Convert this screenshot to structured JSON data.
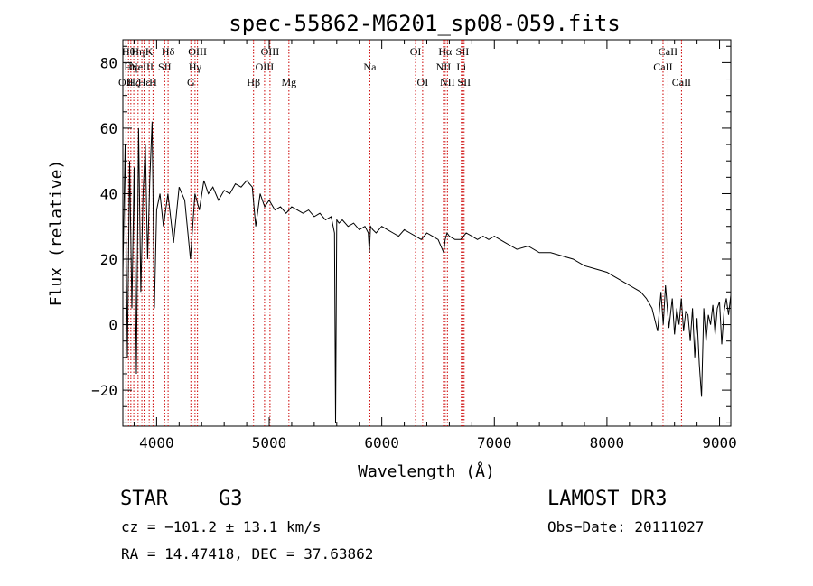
{
  "chart_data": {
    "type": "line",
    "title": "spec-55862-M6201_sp08-059.fits",
    "xlabel": "Wavelength (Å)",
    "ylabel": "Flux (relative)",
    "xlim": [
      3700,
      9100
    ],
    "ylim": [
      -31,
      87
    ],
    "xticks": [
      4000,
      5000,
      6000,
      7000,
      8000,
      9000
    ],
    "yticks": [
      -20,
      0,
      20,
      40,
      60,
      80
    ],
    "xtick_labels": [
      "4000",
      "5000",
      "6000",
      "7000",
      "8000",
      "9000"
    ],
    "ytick_labels": [
      "−20",
      "0",
      "20",
      "40",
      "60",
      "80"
    ],
    "series": [
      {
        "name": "flux",
        "x": [
          3700,
          3720,
          3740,
          3760,
          3780,
          3800,
          3820,
          3840,
          3860,
          3880,
          3900,
          3920,
          3940,
          3960,
          3980,
          4000,
          4030,
          4060,
          4100,
          4150,
          4200,
          4250,
          4300,
          4340,
          4380,
          4420,
          4460,
          4500,
          4550,
          4600,
          4650,
          4700,
          4750,
          4800,
          4850,
          4880,
          4920,
          4960,
          5000,
          5050,
          5100,
          5150,
          5200,
          5250,
          5300,
          5350,
          5400,
          5450,
          5500,
          5550,
          5580,
          5590,
          5600,
          5620,
          5650,
          5700,
          5750,
          5800,
          5850,
          5880,
          5890,
          5900,
          5920,
          5950,
          6000,
          6050,
          6100,
          6150,
          6200,
          6250,
          6300,
          6350,
          6400,
          6450,
          6500,
          6550,
          6563,
          6580,
          6600,
          6650,
          6700,
          6750,
          6800,
          6850,
          6900,
          6950,
          7000,
          7050,
          7100,
          7150,
          7200,
          7300,
          7400,
          7500,
          7600,
          7700,
          7800,
          7900,
          8000,
          8050,
          8100,
          8150,
          8200,
          8250,
          8300,
          8350,
          8400,
          8450,
          8480,
          8500,
          8520,
          8550,
          8580,
          8600,
          8620,
          8640,
          8660,
          8680,
          8700,
          8720,
          8740,
          8760,
          8780,
          8800,
          8820,
          8840,
          8860,
          8880,
          8900,
          8920,
          8940,
          8960,
          8980,
          9000,
          9020,
          9040,
          9060,
          9080,
          9100
        ],
        "y": [
          15,
          55,
          -10,
          50,
          5,
          48,
          -15,
          60,
          10,
          40,
          55,
          20,
          45,
          62,
          5,
          35,
          40,
          30,
          40,
          25,
          42,
          38,
          20,
          40,
          35,
          44,
          40,
          42,
          38,
          41,
          40,
          43,
          42,
          44,
          42,
          30,
          40,
          36,
          38,
          35,
          36,
          34,
          36,
          35,
          34,
          35,
          33,
          34,
          32,
          33,
          28,
          -30,
          32,
          31,
          32,
          30,
          31,
          29,
          30,
          28,
          22,
          30,
          29,
          28,
          30,
          29,
          28,
          27,
          29,
          28,
          27,
          26,
          28,
          27,
          26,
          22,
          26,
          28,
          27,
          26,
          26,
          28,
          27,
          26,
          27,
          26,
          27,
          26,
          25,
          24,
          23,
          24,
          22,
          22,
          21,
          20,
          18,
          17,
          16,
          15,
          14,
          13,
          12,
          11,
          10,
          8,
          5,
          -2,
          10,
          0,
          12,
          -1,
          8,
          -3,
          5,
          0,
          8,
          -2,
          4,
          3,
          -5,
          5,
          -10,
          2,
          -12,
          -22,
          5,
          -5,
          3,
          0,
          6,
          -3,
          5,
          7,
          -6,
          4,
          8,
          3,
          9
        ]
      }
    ],
    "spectral_lines": [
      {
        "wavelength": 3727,
        "label": "OII",
        "row": 3
      },
      {
        "wavelength": 3750,
        "label": "Hθ",
        "row": 1
      },
      {
        "wavelength": 3771,
        "label": "Hη",
        "row": 2
      },
      {
        "wavelength": 3797,
        "label": "Hζ",
        "row": 3
      },
      {
        "wavelength": 3835,
        "label": "Hη",
        "row": 1
      },
      {
        "wavelength": 3869,
        "label": "NeIII",
        "row": 2
      },
      {
        "wavelength": 3889,
        "label": "Hε",
        "row": 3
      },
      {
        "wavelength": 3934,
        "label": "K",
        "row": 1
      },
      {
        "wavelength": 3968,
        "label": "H",
        "row": 3
      },
      {
        "wavelength": 4072,
        "label": "SII",
        "row": 2
      },
      {
        "wavelength": 4102,
        "label": "Hδ",
        "row": 1
      },
      {
        "wavelength": 4304,
        "label": "G",
        "row": 3
      },
      {
        "wavelength": 4341,
        "label": "Hγ",
        "row": 2
      },
      {
        "wavelength": 4363,
        "label": "OIII",
        "row": 1
      },
      {
        "wavelength": 4861,
        "label": "Hβ",
        "row": 3
      },
      {
        "wavelength": 4959,
        "label": "OIII",
        "row": 2
      },
      {
        "wavelength": 5007,
        "label": "OIII",
        "row": 1
      },
      {
        "wavelength": 5175,
        "label": "Mg",
        "row": 3
      },
      {
        "wavelength": 5894,
        "label": "Na",
        "row": 2
      },
      {
        "wavelength": 6300,
        "label": "OI",
        "row": 1
      },
      {
        "wavelength": 6363,
        "label": "OI",
        "row": 3
      },
      {
        "wavelength": 6548,
        "label": "NII",
        "row": 2
      },
      {
        "wavelength": 6563,
        "label": "Hα",
        "row": 1
      },
      {
        "wavelength": 6583,
        "label": "NII",
        "row": 3
      },
      {
        "wavelength": 6707,
        "label": "Li",
        "row": 2
      },
      {
        "wavelength": 6716,
        "label": "SII",
        "row": 1
      },
      {
        "wavelength": 6731,
        "label": "SII",
        "row": 3
      },
      {
        "wavelength": 8498,
        "label": "CaII",
        "row": 2
      },
      {
        "wavelength": 8542,
        "label": "CaII",
        "row": 1
      },
      {
        "wavelength": 8662,
        "label": "CaII",
        "row": 3
      }
    ]
  },
  "info": {
    "object_type": "STAR",
    "subclass": "G3",
    "survey": "LAMOST DR3",
    "cz": "cz = −101.2 ± 13.1 km/s",
    "obs_date": "Obs−Date: 20111027",
    "radec": "RA =  14.47418, DEC =  37.63862"
  }
}
